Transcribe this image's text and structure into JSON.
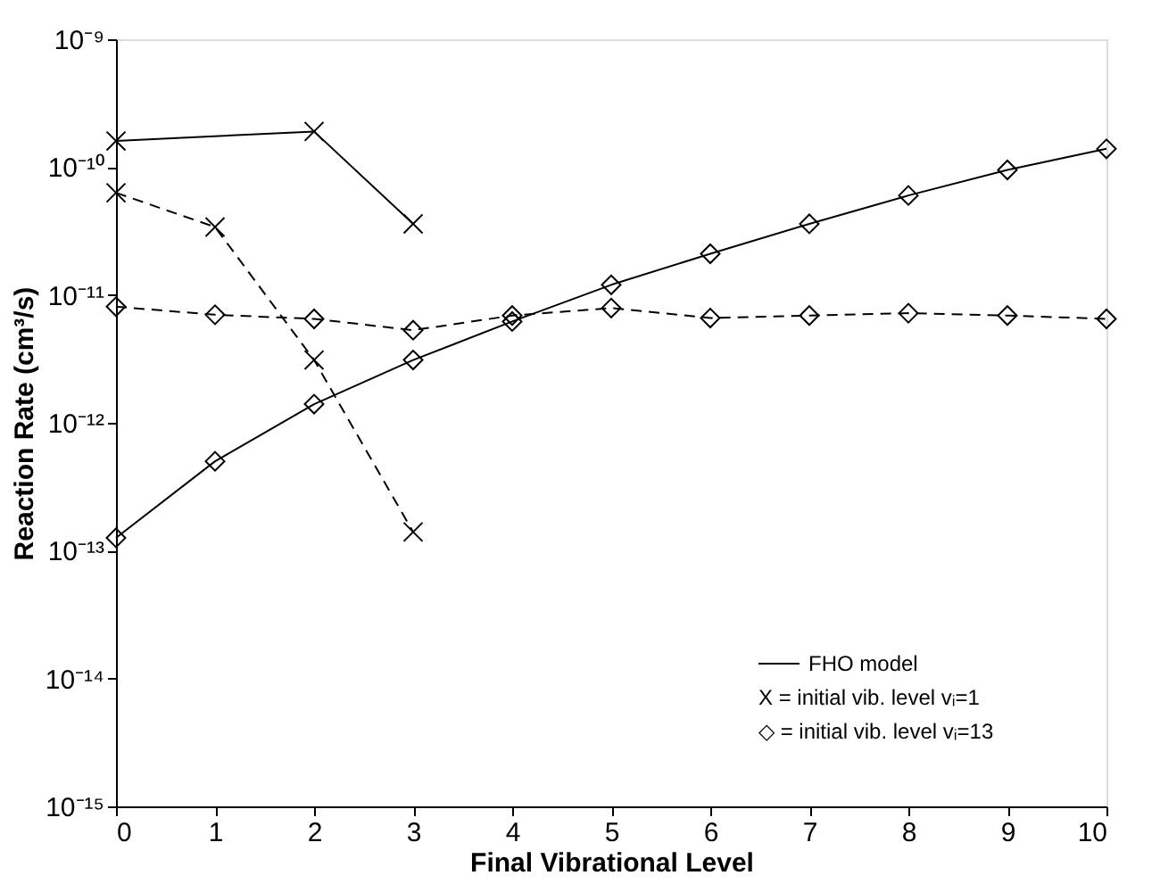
{
  "chart_data": {
    "type": "line",
    "xlabel": "Final Vibrational Level",
    "ylabel": "Reaction Rate (cm³/s)",
    "log": "y",
    "grid": false,
    "legend": false,
    "xlim": [
      0,
      10
    ],
    "xticks": [
      0,
      1,
      2,
      3,
      4,
      5,
      6,
      7,
      8,
      9,
      10
    ],
    "ylim": [
      1e-15,
      1e-09
    ],
    "yticks": [
      {
        "value": 1e-15,
        "label": "10⁻¹⁵"
      },
      {
        "value": 1e-14,
        "label": "10⁻¹⁴"
      },
      {
        "value": 1e-13,
        "label": "10⁻¹³"
      },
      {
        "value": 1e-12,
        "label": "10⁻¹²"
      },
      {
        "value": 1e-11,
        "label": "10⁻¹¹"
      },
      {
        "value": 1e-10,
        "label": "10⁻¹⁰"
      },
      {
        "value": 1e-09,
        "label": "10⁻⁹"
      }
    ],
    "annotations": [
      "FHO model",
      "X = initial vib. level vᵢ=1",
      "◇ = initial vib. level vᵢ=13"
    ],
    "series": [
      {
        "color": "#000000",
        "marker": "cross",
        "line_style": "solid",
        "x": [
          0,
          2,
          3
        ],
        "values": [
          1.6e-10,
          1.9e-10,
          3.6e-11
        ]
      },
      {
        "color": "#000000",
        "marker": "cross",
        "line_style": "dashed",
        "x": [
          0,
          1,
          2,
          3
        ],
        "values": [
          6.3e-11,
          3.4e-11,
          3.1e-12,
          1.4e-13
        ]
      },
      {
        "color": "#000000",
        "marker": "diamond",
        "line_style": "solid",
        "x": [
          0,
          1,
          2,
          3,
          4,
          5,
          6,
          7,
          8,
          9,
          10
        ],
        "values": [
          1.26e-13,
          5e-13,
          1.4e-12,
          3.1e-12,
          6.2e-12,
          1.2e-11,
          2.1e-11,
          3.6e-11,
          6e-11,
          9.5e-11,
          1.39e-10
        ]
      },
      {
        "color": "#000000",
        "marker": "diamond",
        "line_style": "dashed",
        "x": [
          0,
          1,
          2,
          3,
          4,
          5,
          6,
          7,
          8,
          9,
          10
        ],
        "values": [
          8.1e-12,
          7e-12,
          6.5e-12,
          5.3e-12,
          6.9e-12,
          7.9e-12,
          6.6e-12,
          6.9e-12,
          7.2e-12,
          6.9e-12,
          6.5e-12
        ]
      }
    ]
  }
}
